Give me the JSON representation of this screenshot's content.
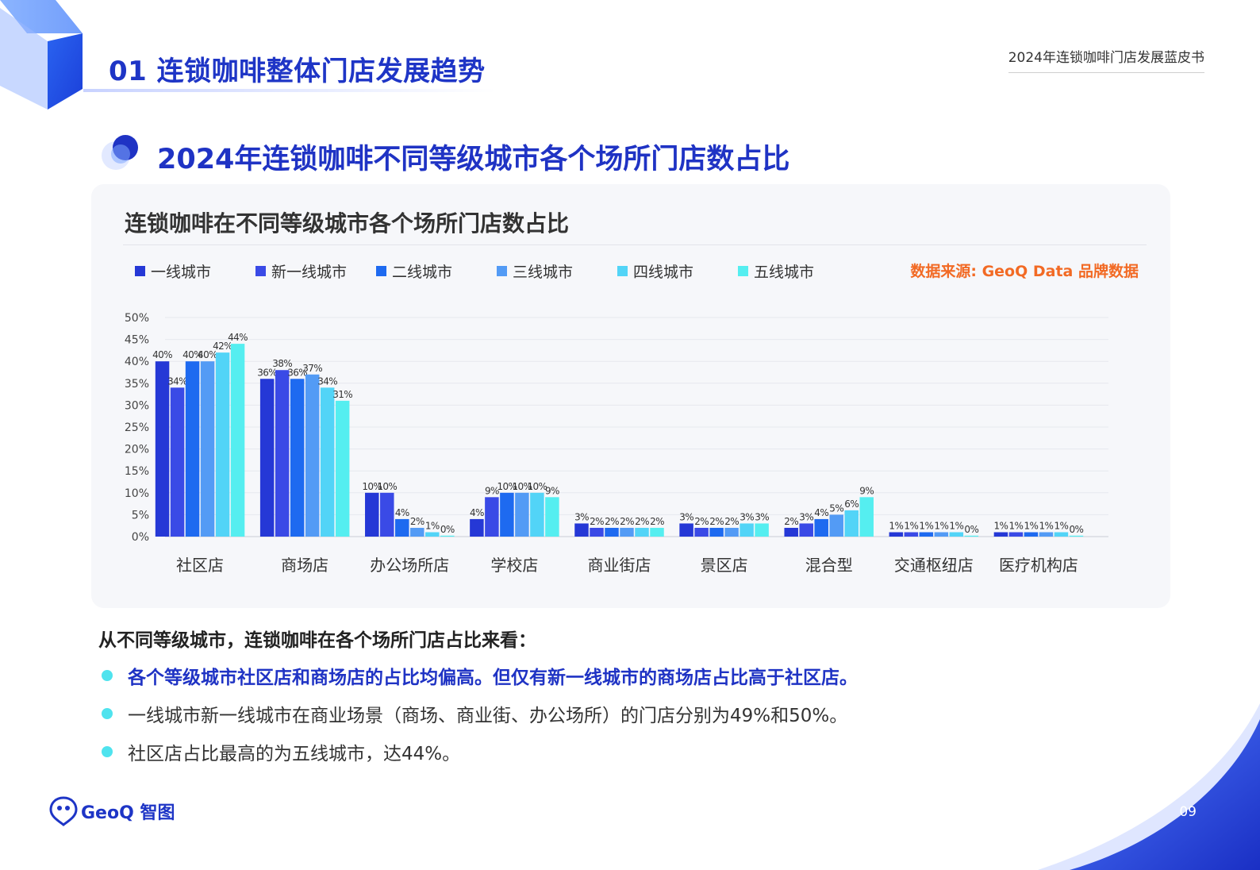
{
  "header": {
    "section_title": "01 连锁咖啡整体门店发展趋势",
    "report_name": "2024年连锁咖啡门店发展蓝皮书"
  },
  "subtitle": "2024年连锁咖啡不同等级城市各个场所门店数占比",
  "chart_panel": {
    "source": "数据来源: GeoQ Data 品牌数据"
  },
  "chart_data": {
    "type": "bar",
    "title": "连锁咖啡在不同等级城市各个场所门店数占比",
    "xlabel": "",
    "ylabel": "",
    "ylim": [
      0,
      50
    ],
    "yticks": [
      "0%",
      "5%",
      "10%",
      "15%",
      "20%",
      "25%",
      "30%",
      "35%",
      "40%",
      "45%",
      "50%"
    ],
    "grid": true,
    "legend_position": "top-left",
    "categories": [
      "社区店",
      "商场店",
      "办公场所店",
      "学校店",
      "商业街店",
      "景区店",
      "混合型",
      "交通枢纽店",
      "医疗机构店"
    ],
    "series": [
      {
        "name": "一线城市",
        "color": "#2538d6",
        "values": [
          40,
          36,
          10,
          4,
          3,
          3,
          2,
          1,
          1
        ],
        "labels": [
          "40%",
          "36%",
          "10%",
          "4%",
          "3%",
          "3%",
          "2%",
          "1%",
          "1%"
        ]
      },
      {
        "name": "新一线城市",
        "color": "#3a4ae6",
        "values": [
          34,
          38,
          10,
          9,
          2,
          2,
          3,
          1,
          1
        ],
        "labels": [
          "34%",
          "38%",
          "10%",
          "9%",
          "2%",
          "2%",
          "3%",
          "1%",
          "1%"
        ]
      },
      {
        "name": "二线城市",
        "color": "#1e6af0",
        "values": [
          40,
          36,
          4,
          10,
          2,
          2,
          4,
          1,
          1
        ],
        "labels": [
          "40%",
          "36%",
          "4%",
          "10%",
          "2%",
          "2%",
          "4%",
          "1%",
          "1%"
        ]
      },
      {
        "name": "三线城市",
        "color": "#539bf5",
        "values": [
          40,
          37,
          2,
          10,
          2,
          2,
          5,
          1,
          1
        ],
        "labels": [
          "40%",
          "37%",
          "2%",
          "10%",
          "2%",
          "2%",
          "5%",
          "1%",
          "1%"
        ]
      },
      {
        "name": "四线城市",
        "color": "#52d4f7",
        "values": [
          42,
          34,
          1,
          10,
          2,
          3,
          6,
          1,
          1
        ],
        "labels": [
          "42%",
          "34%",
          "1%",
          "10%",
          "2%",
          "3%",
          "6%",
          "1%",
          "1%"
        ]
      },
      {
        "name": "五线城市",
        "color": "#55eef0",
        "values": [
          44,
          31,
          0,
          9,
          2,
          3,
          9,
          0,
          0
        ],
        "labels": [
          "44%",
          "31%",
          "0%",
          "9%",
          "2%",
          "3%",
          "9%",
          "0%",
          "0%"
        ]
      }
    ]
  },
  "summary": {
    "heading": "从不同等级城市，连锁咖啡在各个场所门店占比来看：",
    "bullets": [
      "各个等级城市社区店和商场店的占比均偏高。但仅有新一线城市的商场店占比高于社区店。",
      "一线城市新一线城市在商业场景（商场、商业街、办公场所）的门店分别为49%和50%。",
      "社区店占比最高的为五线城市，达44%。"
    ]
  },
  "footer": {
    "logo_text": "GeoQ 智图",
    "page_number": "09"
  },
  "colors": {
    "brand_blue": "#1e35c6",
    "source_orange": "#f26a24",
    "bullet_dot": "#4fe3ee"
  }
}
